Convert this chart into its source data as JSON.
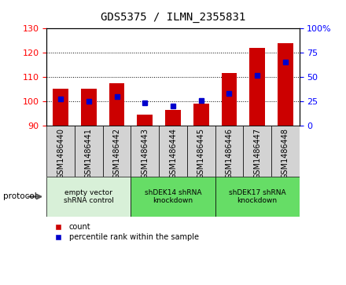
{
  "title": "GDS5375 / ILMN_2355831",
  "samples": [
    "GSM1486440",
    "GSM1486441",
    "GSM1486442",
    "GSM1486443",
    "GSM1486444",
    "GSM1486445",
    "GSM1486446",
    "GSM1486447",
    "GSM1486448"
  ],
  "counts": [
    105.0,
    105.0,
    107.5,
    94.5,
    96.5,
    99.0,
    111.5,
    122.0,
    124.0
  ],
  "percentiles": [
    27,
    25,
    30,
    23,
    20,
    26,
    33,
    52,
    65
  ],
  "ylim_left": [
    90,
    130
  ],
  "ylim_right": [
    0,
    100
  ],
  "yticks_left": [
    90,
    100,
    110,
    120,
    130
  ],
  "yticks_right": [
    0,
    25,
    50,
    75,
    100
  ],
  "bar_color": "#cc0000",
  "dot_color": "#0000cc",
  "bar_bottom": 90,
  "bar_width": 0.55,
  "protocol_groups": [
    {
      "label": "empty vector\nshRNA control",
      "start": 0,
      "end": 3,
      "color": "#d8f0d8"
    },
    {
      "label": "shDEK14 shRNA\nknockdown",
      "start": 3,
      "end": 6,
      "color": "#66dd66"
    },
    {
      "label": "shDEK17 shRNA\nknockdown",
      "start": 6,
      "end": 9,
      "color": "#66dd66"
    }
  ],
  "legend_count_color": "#cc0000",
  "legend_dot_color": "#0000cc",
  "protocol_label": "protocol",
  "sample_box_color": "#d3d3d3",
  "grid_color": "black",
  "title_fontsize": 10,
  "tick_fontsize": 8,
  "label_fontsize": 7
}
